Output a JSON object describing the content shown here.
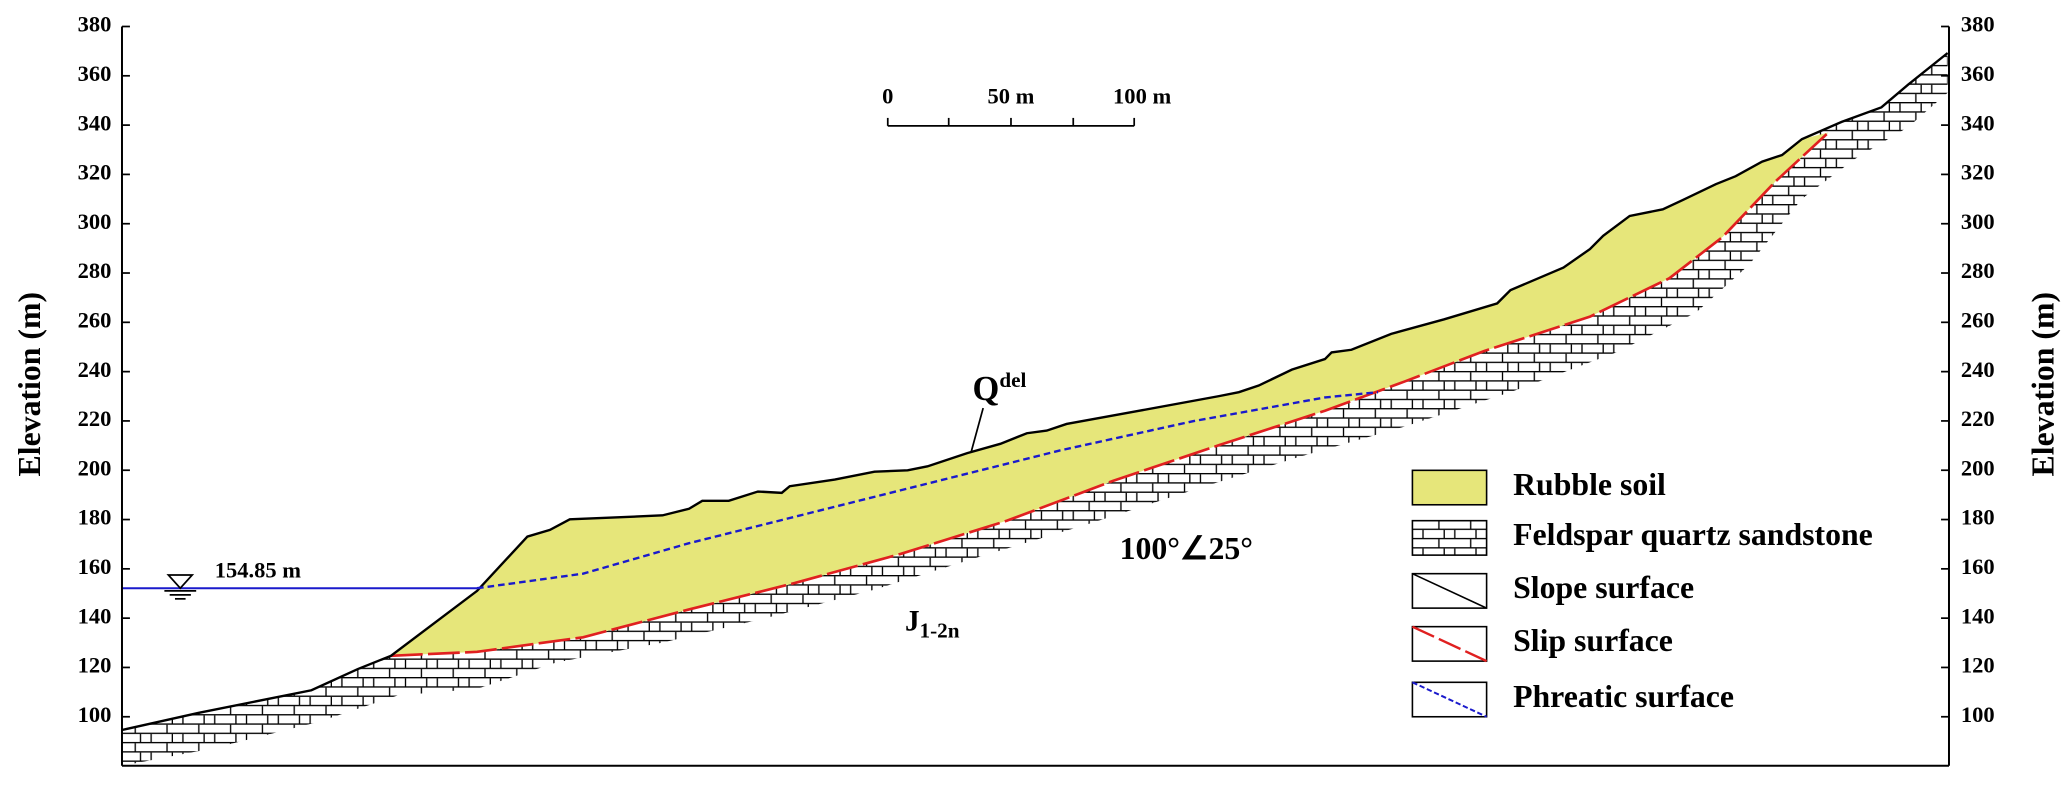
{
  "axes": {
    "left_label": "Elevation (m)",
    "right_label": "Elevation (m)",
    "yticks": [
      100,
      120,
      140,
      160,
      180,
      200,
      220,
      240,
      260,
      280,
      300,
      320,
      340,
      360,
      380
    ]
  },
  "scale_bar": {
    "labels": [
      "0",
      "50 m",
      "100 m"
    ]
  },
  "annotations": {
    "water_level": "154.85 m",
    "q_base": "Q",
    "q_sup": "del",
    "j_base": "J",
    "j_sub": "1-2n",
    "attitude": "100°∠25°"
  },
  "legend": [
    "Rubble soil",
    "Feldspar quartz sandstone",
    "Slope surface",
    "Slip surface",
    "Phreatic surface"
  ]
}
